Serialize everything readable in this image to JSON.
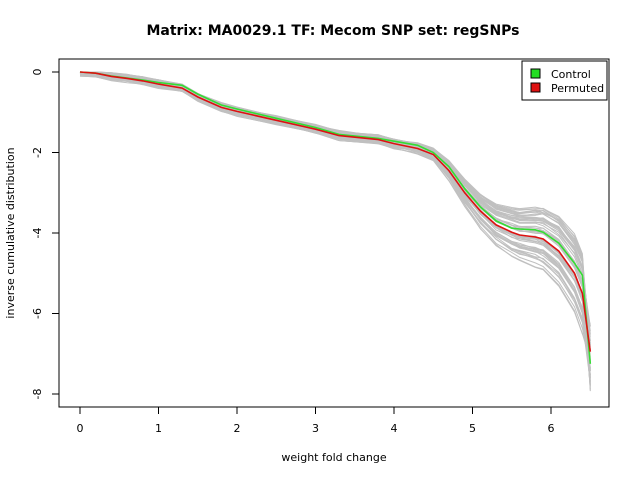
{
  "chart_data": {
    "type": "line",
    "title": "Matrix: MA0029.1 TF: Mecom SNP set: regSNPs",
    "xlabel": "weight fold change",
    "ylabel": "inverse cumulative distribution",
    "xlim": [
      0,
      6.5
    ],
    "ylim": [
      -8,
      0
    ],
    "xticks": [
      "0",
      "1",
      "2",
      "3",
      "4",
      "5",
      "6"
    ],
    "yticks": [
      "0",
      "-2",
      "-4",
      "-6",
      "-8"
    ],
    "grid": false,
    "legend": {
      "position": "top-right",
      "entries": [
        {
          "label": "Control",
          "color": "#22dd22"
        },
        {
          "label": "Permuted",
          "color": "#dd1111"
        }
      ]
    },
    "series": [
      {
        "name": "Control",
        "color": "#33dd33",
        "x": [
          0,
          0.2,
          0.4,
          0.6,
          0.8,
          1.0,
          1.3,
          1.5,
          1.8,
          2.0,
          2.5,
          3.0,
          3.3,
          3.8,
          4.0,
          4.3,
          4.5,
          4.7,
          4.9,
          5.1,
          5.3,
          5.5,
          5.6,
          5.8,
          5.9,
          6.1,
          6.3,
          6.4,
          6.5
        ],
        "y": [
          0,
          -0.03,
          -0.1,
          -0.15,
          -0.2,
          -0.26,
          -0.33,
          -0.55,
          -0.82,
          -0.92,
          -1.15,
          -1.38,
          -1.55,
          -1.65,
          -1.72,
          -1.82,
          -2.0,
          -2.35,
          -2.9,
          -3.35,
          -3.7,
          -3.88,
          -3.9,
          -3.92,
          -3.98,
          -4.25,
          -4.75,
          -5.05,
          -7.25
        ]
      },
      {
        "name": "Permuted",
        "color": "#dd1111",
        "x": [
          0,
          0.2,
          0.4,
          0.6,
          0.8,
          1.0,
          1.3,
          1.5,
          1.8,
          2.0,
          2.5,
          3.0,
          3.3,
          3.8,
          4.0,
          4.3,
          4.5,
          4.7,
          4.9,
          5.1,
          5.3,
          5.5,
          5.6,
          5.8,
          5.9,
          6.1,
          6.3,
          6.4,
          6.5
        ],
        "y": [
          0,
          -0.03,
          -0.11,
          -0.16,
          -0.22,
          -0.3,
          -0.4,
          -0.62,
          -0.88,
          -0.98,
          -1.2,
          -1.42,
          -1.58,
          -1.68,
          -1.78,
          -1.9,
          -2.05,
          -2.45,
          -3.0,
          -3.45,
          -3.8,
          -3.98,
          -4.05,
          -4.1,
          -4.15,
          -4.45,
          -5.0,
          -5.5,
          -6.95
        ]
      }
    ],
    "background_curves": {
      "count": 60,
      "color": "#c0c0c0",
      "y_at_x_max_range": [
        -6.2,
        -8.0
      ]
    }
  }
}
